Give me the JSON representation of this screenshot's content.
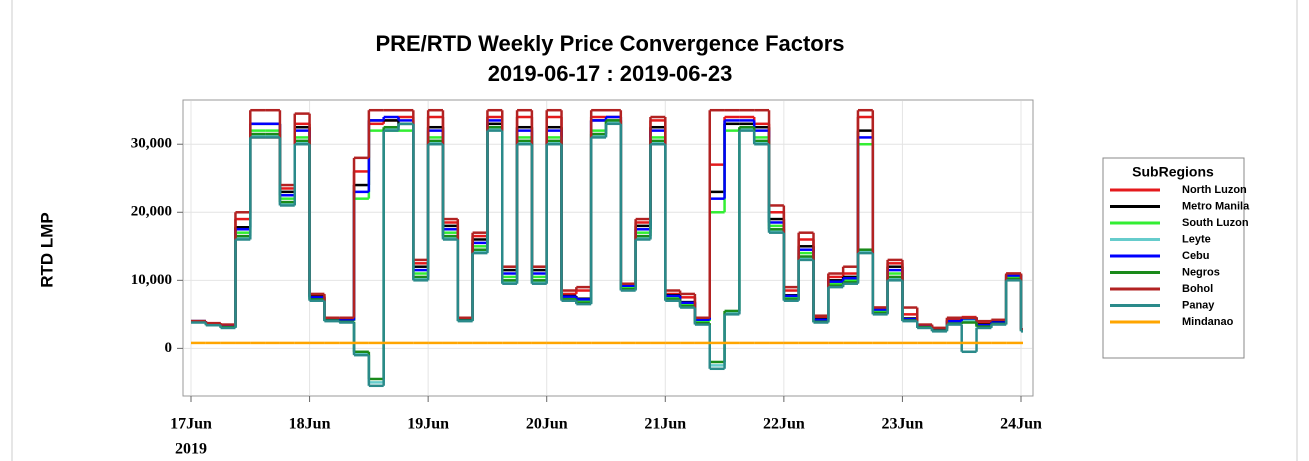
{
  "chart_data": {
    "type": "step-line",
    "title": "PRE/RTD Weekly Price Convergence Factors",
    "subtitle": "2019-06-17 : 2019-06-23",
    "y_label": "RTD LMP",
    "legend_title": "SubRegions",
    "legend_position": "right",
    "grid": true,
    "xlim": [
      0,
      7
    ],
    "xticks": [
      {
        "value": 0,
        "label": "17Jun"
      },
      {
        "value": 1,
        "label": "18Jun"
      },
      {
        "value": 2,
        "label": "19Jun"
      },
      {
        "value": 3,
        "label": "20Jun"
      },
      {
        "value": 4,
        "label": "21Jun"
      },
      {
        "value": 5,
        "label": "22Jun"
      },
      {
        "value": 6,
        "label": "23Jun"
      },
      {
        "value": 7,
        "label": "24Jun"
      }
    ],
    "xtick_year": "2019",
    "ylim": [
      -7000,
      36500
    ],
    "yticks": [
      0,
      {
        "value": 10000,
        "label": "10,000"
      },
      {
        "value": 20000,
        "label": "20,000"
      },
      {
        "value": 30000,
        "label": "30,000"
      }
    ],
    "x": [
      0,
      0.125,
      0.25,
      0.375,
      0.5,
      0.625,
      0.75,
      0.875,
      1,
      1.125,
      1.25,
      1.375,
      1.5,
      1.625,
      1.75,
      1.875,
      2,
      2.125,
      2.25,
      2.375,
      2.5,
      2.625,
      2.75,
      2.875,
      3,
      3.125,
      3.25,
      3.375,
      3.5,
      3.625,
      3.75,
      3.875,
      4,
      4.125,
      4.25,
      4.375,
      4.5,
      4.625,
      4.75,
      4.875,
      5,
      5.125,
      5.25,
      5.375,
      5.5,
      5.625,
      5.75,
      5.875,
      6,
      6.125,
      6.25,
      6.375,
      6.5,
      6.625,
      6.75,
      6.875,
      7
    ],
    "series": [
      {
        "name": "North Luzon",
        "color": "#e41a1c",
        "values": [
          4000,
          3700,
          3400,
          19000,
          31000,
          31000,
          23500,
          33000,
          7800,
          4400,
          4300,
          26000,
          33000,
          33500,
          34000,
          12500,
          34000,
          18500,
          4400,
          16500,
          34000,
          12000,
          34000,
          12000,
          34000,
          8000,
          8500,
          34000,
          34000,
          9400,
          18500,
          33500,
          8000,
          7500,
          4400,
          27000,
          34000,
          34000,
          33000,
          20000,
          8500,
          16000,
          4500,
          10500,
          11000,
          34000,
          6000,
          12500,
          5000,
          3400,
          3000,
          4200,
          4600,
          3800,
          4000,
          11000,
          2800
        ]
      },
      {
        "name": "Metro Manila",
        "color": "#000000",
        "values": [
          4000,
          3600,
          3200,
          17800,
          33000,
          33000,
          23000,
          32500,
          7600,
          4300,
          4100,
          24000,
          33500,
          33500,
          33000,
          12000,
          32500,
          18000,
          4300,
          16000,
          33000,
          11500,
          32500,
          11500,
          32500,
          7700,
          7300,
          33500,
          33500,
          9300,
          18000,
          32500,
          7800,
          6800,
          4300,
          23000,
          33000,
          33000,
          32500,
          19000,
          7800,
          15000,
          4300,
          10000,
          10500,
          32000,
          5800,
          12000,
          4400,
          3300,
          2900,
          4000,
          4500,
          3500,
          3900,
          10800,
          2800
        ]
      },
      {
        "name": "South Luzon",
        "color": "#33ee33",
        "values": [
          3900,
          3500,
          3100,
          17000,
          32000,
          32000,
          22000,
          31000,
          7300,
          4200,
          4000,
          22000,
          32000,
          32000,
          32000,
          11000,
          31000,
          17000,
          4200,
          15000,
          32500,
          10500,
          31000,
          10500,
          31000,
          7400,
          7000,
          32000,
          33500,
          9000,
          17000,
          31000,
          7500,
          6500,
          4000,
          20000,
          32000,
          32500,
          31000,
          18000,
          7500,
          14000,
          4000,
          9500,
          10000,
          30000,
          5500,
          11000,
          4200,
          3200,
          2800,
          3800,
          4200,
          3300,
          3700,
          10500,
          2700
        ]
      },
      {
        "name": "Leyte",
        "color": "#66cccc",
        "values": [
          3850,
          3450,
          3050,
          16200,
          31200,
          31200,
          21200,
          30200,
          7100,
          4050,
          3850,
          -800,
          -5000,
          32200,
          33000,
          10200,
          30200,
          16200,
          4050,
          14200,
          32200,
          9700,
          30200,
          9700,
          30200,
          7100,
          6600,
          31200,
          33200,
          8600,
          16200,
          30200,
          7100,
          6100,
          3600,
          -2500,
          5200,
          32200,
          30200,
          17200,
          7100,
          13200,
          3850,
          9100,
          9600,
          14200,
          5100,
          10200,
          4050,
          3050,
          2550,
          3550,
          4000,
          3100,
          3550,
          10100,
          2550
        ]
      },
      {
        "name": "Cebu",
        "color": "#0000ff",
        "values": [
          4000,
          3600,
          3200,
          17500,
          33000,
          33000,
          22500,
          32000,
          7500,
          4300,
          4100,
          23000,
          33500,
          34000,
          33500,
          11500,
          32000,
          17500,
          4300,
          15500,
          33500,
          11000,
          32000,
          11000,
          32000,
          7600,
          7200,
          33500,
          34000,
          9200,
          17500,
          32000,
          7700,
          6700,
          4200,
          22000,
          33500,
          33500,
          32000,
          18500,
          7700,
          14500,
          4200,
          9800,
          10300,
          31000,
          5700,
          11500,
          4300,
          3300,
          2900,
          4000,
          4400,
          3400,
          3800,
          10700,
          2800
        ]
      },
      {
        "name": "Negros",
        "color": "#1a8a1a",
        "values": [
          3900,
          3500,
          3100,
          16500,
          31500,
          31500,
          21500,
          30500,
          7200,
          4100,
          3900,
          -500,
          -4500,
          32500,
          33000,
          10500,
          30500,
          16500,
          4100,
          14500,
          32500,
          10000,
          30500,
          10000,
          30500,
          7200,
          6700,
          31500,
          33500,
          8700,
          16500,
          30500,
          7200,
          6200,
          3700,
          -2000,
          5500,
          32500,
          30500,
          17500,
          7200,
          13500,
          3900,
          9200,
          9700,
          14500,
          5200,
          10500,
          4100,
          3100,
          2600,
          3600,
          3800,
          3200,
          3600,
          10200,
          2600
        ]
      },
      {
        "name": "Bohol",
        "color": "#b22222",
        "values": [
          4000,
          3700,
          3500,
          20000,
          35000,
          35000,
          24000,
          34500,
          8000,
          4500,
          4500,
          28000,
          35000,
          35000,
          35000,
          13000,
          35000,
          19000,
          4500,
          17000,
          35000,
          12000,
          35000,
          12000,
          35000,
          8500,
          9000,
          35000,
          35000,
          9500,
          19000,
          34000,
          8500,
          8000,
          4500,
          35000,
          35000,
          35000,
          35000,
          21000,
          9000,
          17000,
          4800,
          11000,
          12000,
          35000,
          6000,
          13000,
          6000,
          3500,
          3000,
          4500,
          4500,
          4000,
          4200,
          11000,
          2800
        ]
      },
      {
        "name": "Panay",
        "color": "#2a8a8a",
        "values": [
          3800,
          3400,
          3000,
          16000,
          31000,
          31000,
          21000,
          30000,
          7000,
          4000,
          3800,
          -1000,
          -5500,
          32000,
          33000,
          10000,
          30000,
          16000,
          4000,
          14000,
          32000,
          9500,
          30000,
          9500,
          30000,
          7000,
          6500,
          31000,
          33000,
          8500,
          16000,
          30000,
          7000,
          6000,
          3500,
          -3000,
          5000,
          32000,
          30000,
          17000,
          7000,
          13000,
          3800,
          9000,
          9500,
          14000,
          5000,
          10000,
          4000,
          3000,
          2500,
          3500,
          -500,
          3000,
          3500,
          10000,
          2500
        ]
      },
      {
        "name": "Mindanao",
        "color": "#ffa500",
        "values": [
          800,
          800,
          800,
          800,
          800,
          800,
          800,
          800,
          800,
          800,
          800,
          800,
          800,
          800,
          800,
          800,
          800,
          800,
          800,
          800,
          800,
          800,
          800,
          800,
          800,
          800,
          800,
          800,
          800,
          800,
          800,
          800,
          800,
          800,
          800,
          800,
          800,
          800,
          800,
          800,
          800,
          800,
          800,
          800,
          800,
          800,
          800,
          800,
          800,
          800,
          800,
          800,
          800,
          800,
          800,
          800,
          800
        ]
      }
    ]
  }
}
